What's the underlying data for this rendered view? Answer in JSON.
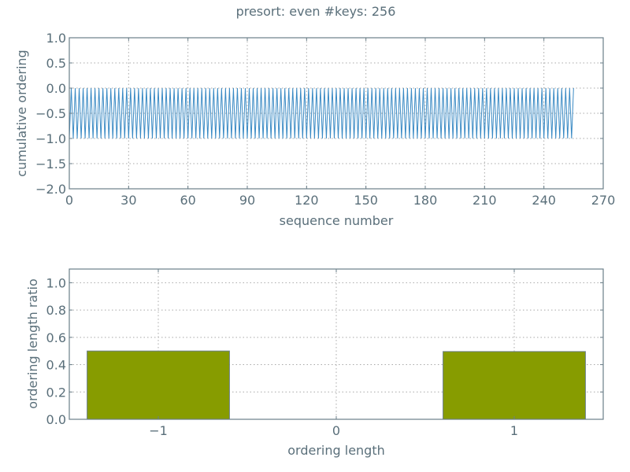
{
  "title": "presort: even #keys: 256",
  "chart_data": [
    {
      "type": "line",
      "xlabel": "sequence number",
      "ylabel": "cumulative ordering",
      "xlim": [
        0,
        270
      ],
      "ylim": [
        -2.0,
        1.0
      ],
      "xticks": [
        0,
        30,
        60,
        90,
        120,
        150,
        180,
        210,
        240,
        270
      ],
      "yticks": [
        1.0,
        0.5,
        0.0,
        -0.5,
        -1.0,
        -1.5,
        -2.0
      ],
      "xtick_labels": [
        "0",
        "30",
        "60",
        "90",
        "120",
        "150",
        "180",
        "210",
        "240",
        "270"
      ],
      "ytick_labels": [
        "1.0",
        "0.5",
        "0.0",
        "−0.5",
        "−1.0",
        "−1.5",
        "−2.0"
      ],
      "grid": true,
      "color": "#3a8ac4",
      "series": [
        {
          "pattern": "alternating",
          "n_points": 256,
          "x_start": 0,
          "x_step": 1,
          "values": [
            -1,
            0
          ]
        }
      ]
    },
    {
      "type": "bar",
      "xlabel": "ordering length",
      "ylabel": "ordering length ratio",
      "xlim": [
        -1.5,
        1.5
      ],
      "ylim": [
        0.0,
        1.1
      ],
      "x": [
        -1,
        0,
        1
      ],
      "values": [
        0.5,
        0.0,
        0.496
      ],
      "bar_width": 0.8,
      "xticks": [
        -1,
        0,
        1
      ],
      "yticks": [
        0.0,
        0.2,
        0.4,
        0.6,
        0.8,
        1.0
      ],
      "xtick_labels": [
        "−1",
        "0",
        "1"
      ],
      "ytick_labels": [
        "0.0",
        "0.2",
        "0.4",
        "0.6",
        "0.8",
        "1.0"
      ],
      "grid": true,
      "color": "#879c00",
      "edge_color": "#6a7e88"
    }
  ]
}
